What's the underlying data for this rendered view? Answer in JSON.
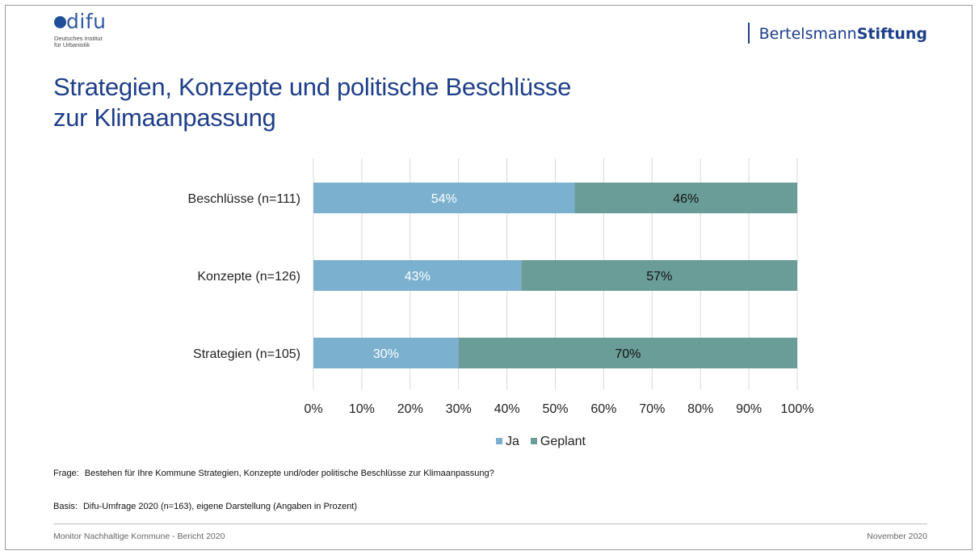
{
  "header": {
    "difu_logo": {
      "wordmark": "difu",
      "line1": "Deutsches Institut",
      "line2": "für Urbanistik"
    },
    "bertelsmann_logo": {
      "part1": "Bertelsmann",
      "part2": "Stiftung"
    }
  },
  "slide": {
    "title_line1": "Strategien, Konzepte und politische Beschlüsse",
    "title_line2": "zur Klimaanpassung",
    "question_label": "Frage:",
    "question_text": "Bestehen für Ihre Kommune  Strategien, Konzepte und/oder politische Beschlüsse zur Klimaanpassung?",
    "basis_label": "Basis:",
    "basis_text": "Difu-Umfrage 2020 (n=163), eigene Darstellung (Angaben in Prozent)",
    "footer_left": "Monitor Nachhaltige Kommune  - Bericht 2020",
    "footer_right": "November 2020"
  },
  "chart_data": {
    "type": "bar",
    "orientation": "horizontal",
    "stacked": true,
    "categories": [
      "Beschlüsse (n=111)",
      "Konzepte (n=126)",
      "Strategien (n=105)"
    ],
    "series": [
      {
        "name": "Ja",
        "values": [
          54,
          43,
          30
        ],
        "labels": [
          "54%",
          "43%",
          "30%"
        ],
        "color": "#7bb0cf",
        "label_color": "#ffffff"
      },
      {
        "name": "Geplant",
        "values": [
          46,
          57,
          70
        ],
        "labels": [
          "46%",
          "57%",
          "70%"
        ],
        "color": "#6a9d98",
        "label_color": "#111111"
      }
    ],
    "xlim": [
      0,
      100
    ],
    "xticks": [
      0,
      10,
      20,
      30,
      40,
      50,
      60,
      70,
      80,
      90,
      100
    ],
    "xtick_labels": [
      "0%",
      "10%",
      "20%",
      "30%",
      "40%",
      "50%",
      "60%",
      "70%",
      "80%",
      "90%",
      "100%"
    ],
    "grid": "vertical",
    "legend_position": "bottom",
    "colors": {
      "grid": "#d9d9d9",
      "text": "#222222"
    }
  }
}
